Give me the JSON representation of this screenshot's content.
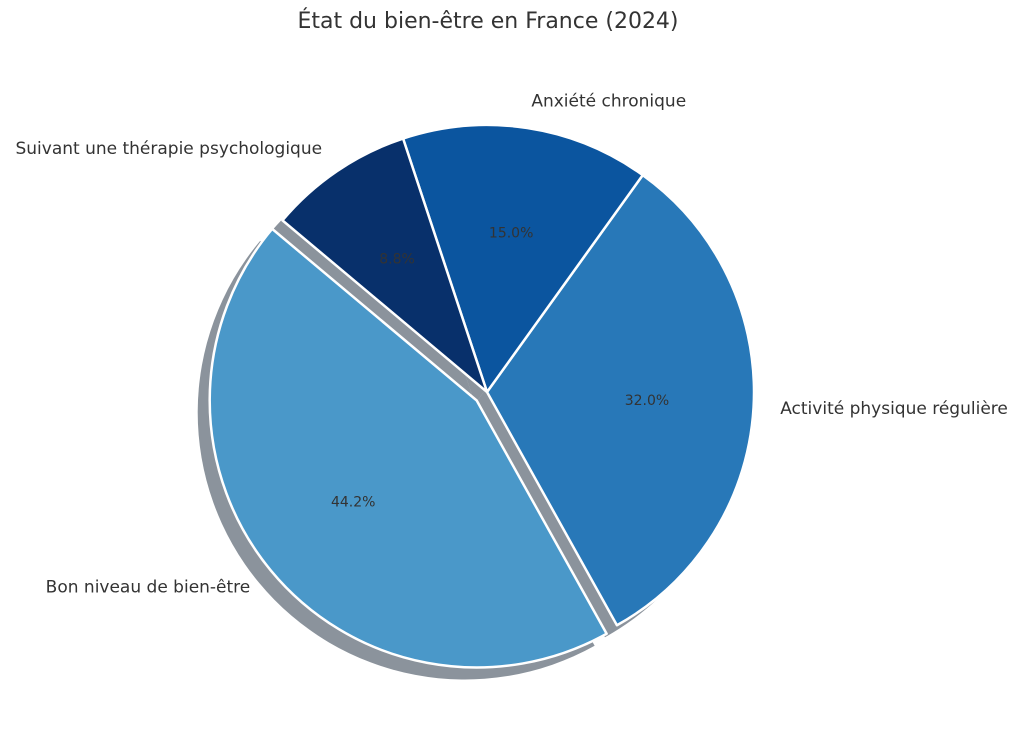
{
  "chart_data": {
    "type": "pie",
    "title": "État du bien-être en France (2024)",
    "categories": [
      "Bon niveau de bien-être",
      "Activité physique régulière",
      "Anxiété chronique",
      "Suivant une thérapie psychologique"
    ],
    "values": [
      44.2,
      32.0,
      15.0,
      8.8
    ],
    "value_labels": [
      "44.2%",
      "32.0%",
      "15.0%",
      "8.8%"
    ],
    "colors": [
      "#4a98c9",
      "#2878b8",
      "#0b559f",
      "#08306b"
    ],
    "explode": [
      0.05,
      0,
      0,
      0
    ],
    "shadow": true
  }
}
